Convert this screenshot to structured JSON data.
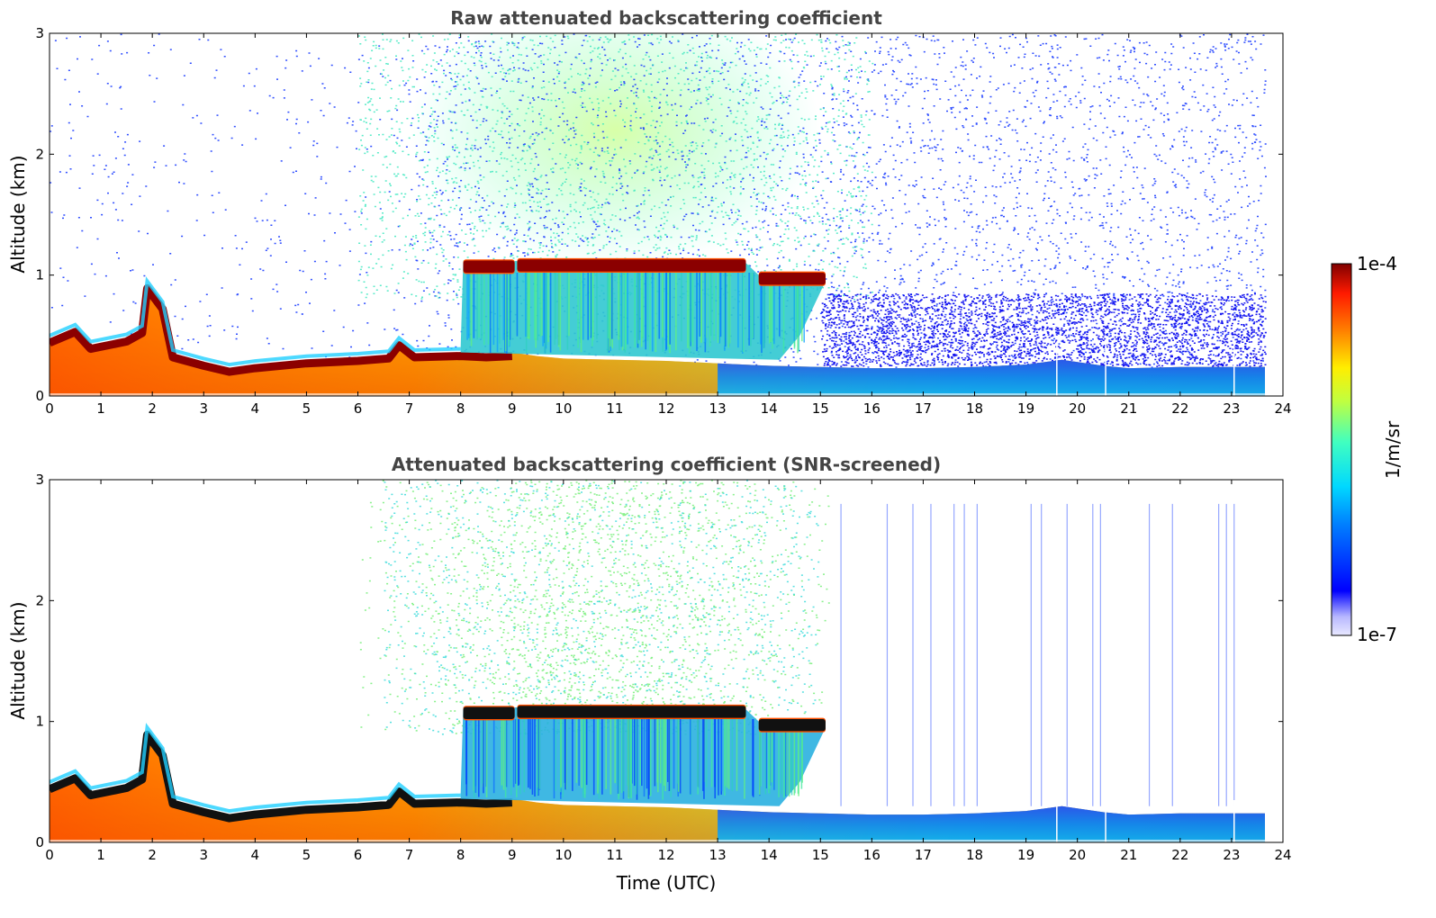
{
  "figure": {
    "xlabel": "Time (UTC)",
    "colorbar": {
      "label": "1/m/sr",
      "max_label": "1e-4",
      "min_label": "1e-7"
    }
  },
  "chart_data": [
    {
      "type": "heatmap",
      "title": "Raw attenuated backscattering coefficient",
      "xlabel": "",
      "ylabel": "Altitude (km)",
      "xlim": [
        0,
        24
      ],
      "ylim": [
        0,
        3
      ],
      "x_ticks": [
        "0",
        "1",
        "2",
        "3",
        "4",
        "5",
        "6",
        "7",
        "8",
        "9",
        "10",
        "11",
        "12",
        "13",
        "14",
        "15",
        "16",
        "17",
        "18",
        "19",
        "20",
        "21",
        "22",
        "23",
        "24"
      ],
      "y_ticks": [
        "0",
        "1",
        "2",
        "3"
      ],
      "data_end_time": 23.65,
      "colorbar": "1e-7 to 1e-4 1/m/sr (log)",
      "cloud_layer": {
        "segments": [
          {
            "t0": 8.05,
            "t1": 9.05,
            "alt": 1.07
          },
          {
            "t0": 9.1,
            "t1": 13.55,
            "alt": 1.08
          },
          {
            "t0": 13.8,
            "t1": 15.1,
            "alt": 0.97
          }
        ]
      },
      "boundary_layer_top": [
        [
          0,
          0.47
        ],
        [
          0.5,
          0.56
        ],
        [
          0.8,
          0.42
        ],
        [
          1.5,
          0.48
        ],
        [
          1.8,
          0.55
        ],
        [
          1.9,
          0.92
        ],
        [
          2.2,
          0.75
        ],
        [
          2.4,
          0.35
        ],
        [
          3,
          0.28
        ],
        [
          3.5,
          0.23
        ],
        [
          4,
          0.26
        ],
        [
          5,
          0.3
        ],
        [
          6,
          0.32
        ],
        [
          6.6,
          0.34
        ],
        [
          6.8,
          0.45
        ],
        [
          7.1,
          0.35
        ],
        [
          8,
          0.36
        ],
        [
          8.5,
          0.35
        ],
        [
          9,
          0.36
        ],
        [
          9.5,
          0.33
        ],
        [
          10,
          0.31
        ],
        [
          11,
          0.3
        ],
        [
          12,
          0.29
        ],
        [
          13,
          0.27
        ],
        [
          14,
          0.25
        ],
        [
          15,
          0.24
        ],
        [
          16,
          0.23
        ],
        [
          17,
          0.23
        ],
        [
          18,
          0.24
        ],
        [
          19,
          0.26
        ],
        [
          19.7,
          0.3
        ],
        [
          20.5,
          0.25
        ],
        [
          21,
          0.23
        ],
        [
          22,
          0.24
        ],
        [
          23.65,
          0.24
        ]
      ]
    },
    {
      "type": "heatmap",
      "title": "Attenuated backscattering coefficient (SNR-screened)",
      "xlabel": "Time (UTC)",
      "ylabel": "Altitude (km)",
      "xlim": [
        0,
        24
      ],
      "ylim": [
        0,
        3
      ],
      "x_ticks": [
        "0",
        "1",
        "2",
        "3",
        "4",
        "5",
        "6",
        "7",
        "8",
        "9",
        "10",
        "11",
        "12",
        "13",
        "14",
        "15",
        "16",
        "17",
        "18",
        "19",
        "20",
        "21",
        "22",
        "23",
        "24"
      ],
      "y_ticks": [
        "0",
        "1",
        "2",
        "3"
      ],
      "data_end_time": 23.65,
      "colorbar": "1e-7 to 1e-4 1/m/sr (log)",
      "screened_noise_window": [
        6.0,
        15.2
      ]
    }
  ]
}
